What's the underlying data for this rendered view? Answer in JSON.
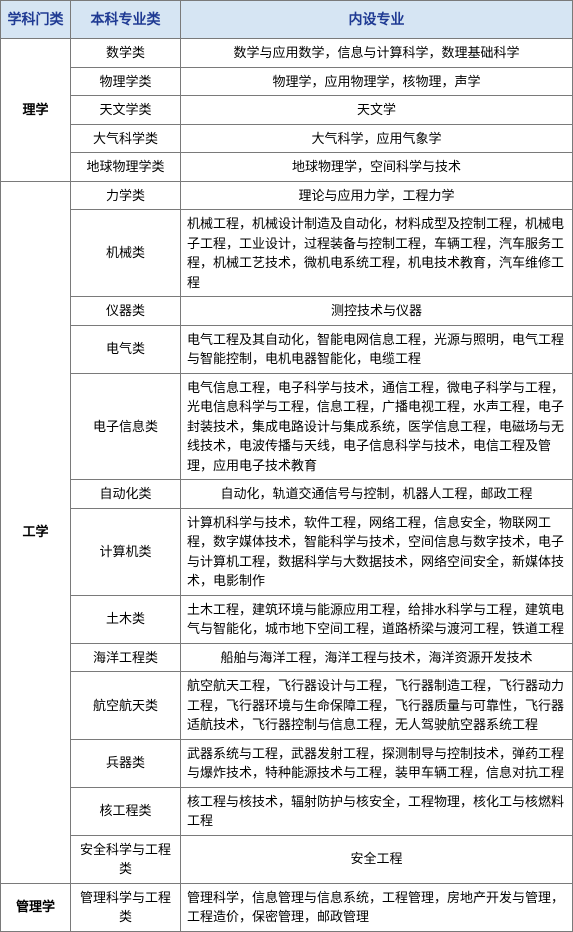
{
  "columns": [
    "学科门类",
    "本科专业类",
    "内设专业"
  ],
  "groups": [
    {
      "category": "理学",
      "rows": [
        {
          "class": "数学类",
          "majors": "数学与应用数学，信息与计算科学，数理基础科学",
          "center": true
        },
        {
          "class": "物理学类",
          "majors": "物理学，应用物理学，核物理，声学",
          "center": true
        },
        {
          "class": "天文学类",
          "majors": "天文学",
          "center": true
        },
        {
          "class": "大气科学类",
          "majors": "大气科学，应用气象学",
          "center": true
        },
        {
          "class": "地球物理学类",
          "majors": "地球物理学，空间科学与技术",
          "center": true
        }
      ]
    },
    {
      "category": "工学",
      "rows": [
        {
          "class": "力学类",
          "majors": "理论与应用力学，工程力学",
          "center": true
        },
        {
          "class": "机械类",
          "majors": "机械工程，机械设计制造及自动化，材料成型及控制工程，机械电子工程，工业设计，过程装备与控制工程，车辆工程，汽车服务工程，机械工艺技术，微机电系统工程，机电技术教育，汽车维修工程",
          "center": false
        },
        {
          "class": "仪器类",
          "majors": "测控技术与仪器",
          "center": true
        },
        {
          "class": "电气类",
          "majors": "电气工程及其自动化，智能电网信息工程，光源与照明，电气工程与智能控制，电机电器智能化，电缆工程",
          "center": false
        },
        {
          "class": "电子信息类",
          "majors": "电气信息工程，电子科学与技术，通信工程，微电子科学与工程，光电信息科学与工程，信息工程，广播电视工程，水声工程，电子封装技术，集成电路设计与集成系统，医学信息工程，电磁场与无线技术，电波传播与天线，电子信息科学与技术，电信工程及管理，应用电子技术教育",
          "center": false
        },
        {
          "class": "自动化类",
          "majors": "自动化，轨道交通信号与控制，机器人工程，邮政工程",
          "center": true
        },
        {
          "class": "计算机类",
          "majors": "计算机科学与技术，软件工程，网络工程，信息安全，物联网工程，数字媒体技术，智能科学与技术，空间信息与数字技术，电子与计算机工程，数据科学与大数据技术，网络空间安全，新媒体技术，电影制作",
          "center": false
        },
        {
          "class": "土木类",
          "majors": "土木工程，建筑环境与能源应用工程，给排水科学与工程，建筑电气与智能化，城市地下空间工程，道路桥梁与渡河工程，铁道工程",
          "center": false
        },
        {
          "class": "海洋工程类",
          "majors": "船舶与海洋工程，海洋工程与技术，海洋资源开发技术",
          "center": true
        },
        {
          "class": "航空航天类",
          "majors": "航空航天工程，飞行器设计与工程，飞行器制造工程，飞行器动力工程，飞行器环境与生命保障工程，飞行器质量与可靠性，飞行器适航技术，飞行器控制与信息工程，无人驾驶航空器系统工程",
          "center": false
        },
        {
          "class": "兵器类",
          "majors": "武器系统与工程，武器发射工程，探测制导与控制技术，弹药工程与爆炸技术，特种能源技术与工程，装甲车辆工程，信息对抗工程",
          "center": false
        },
        {
          "class": "核工程类",
          "majors": "核工程与核技术，辐射防护与核安全，工程物理，核化工与核燃料工程",
          "center": false
        },
        {
          "class": "安全科学与工程类",
          "majors": "安全工程",
          "center": true
        }
      ]
    },
    {
      "category": "管理学",
      "rows": [
        {
          "class": "管理科学与工程类",
          "majors": "管理科学，信息管理与信息系统，工程管理，房地产开发与管理，工程造价，保密管理，邮政管理",
          "center": false
        }
      ]
    }
  ]
}
